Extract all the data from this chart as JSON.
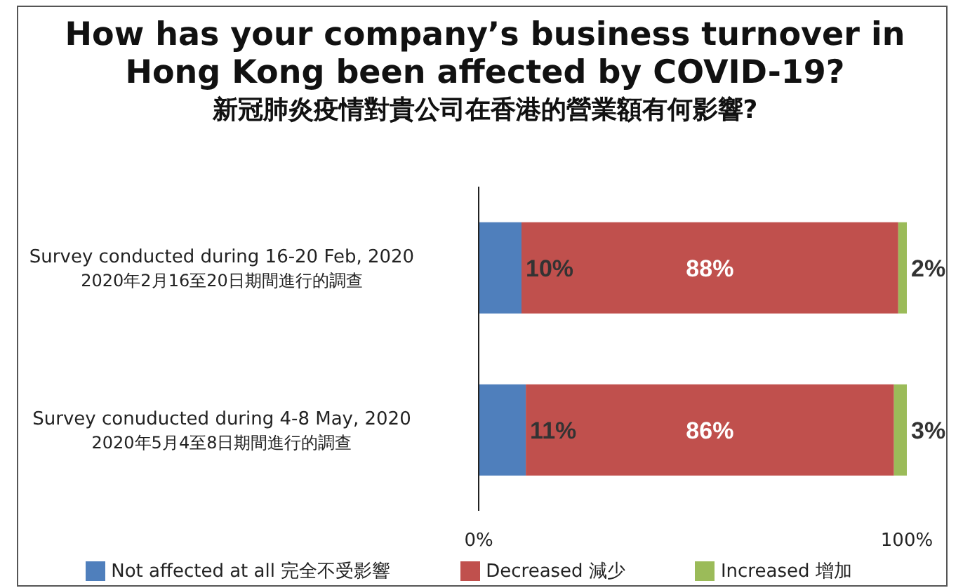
{
  "chart_data": {
    "type": "bar",
    "orientation": "horizontal",
    "stacked": true,
    "title": "How has your company’s business turnover in Hong Kong been affected by COVID-19?",
    "subtitle": "新冠肺炎疫情對貴公司在香港的營業額有何影響?",
    "categories": [
      "Survey conducted during 16-20 Feb, 2020\n2020年2月16至20日期間進行的調查",
      "Survey conuducted during 4-8 May, 2020\n2020年5月4至8日期間進行的調查"
    ],
    "series": [
      {
        "name": "Not affected at all 完全不受影響",
        "color": "#4f7fbc",
        "values": [
          10,
          11
        ],
        "value_labels": [
          "10%",
          "11%"
        ]
      },
      {
        "name": "Decreased 減少",
        "color": "#c0504d",
        "values": [
          88,
          86
        ],
        "value_labels": [
          "88%",
          "86%"
        ]
      },
      {
        "name": "Increased 增加",
        "color": "#9bbb59",
        "values": [
          2,
          3
        ],
        "value_labels": [
          "2%",
          "3%"
        ]
      }
    ],
    "xlim": [
      0,
      100
    ],
    "xticks": [
      {
        "value": 0,
        "label": "0%"
      },
      {
        "value": 100,
        "label": "100%"
      }
    ],
    "grid": false,
    "legend": "bottom"
  }
}
